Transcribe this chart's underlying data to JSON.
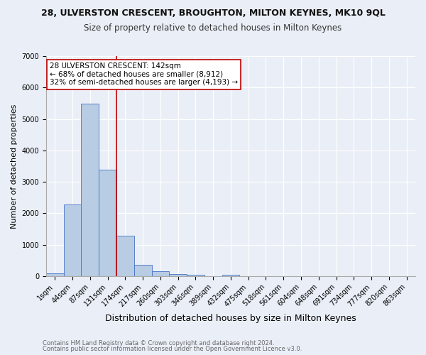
{
  "title1": "28, ULVERSTON CRESCENT, BROUGHTON, MILTON KEYNES, MK10 9QL",
  "title2": "Size of property relative to detached houses in Milton Keynes",
  "xlabel": "Distribution of detached houses by size in Milton Keynes",
  "ylabel": "Number of detached properties",
  "footer1": "Contains HM Land Registry data © Crown copyright and database right 2024.",
  "footer2": "Contains public sector information licensed under the Open Government Licence v3.0.",
  "bar_labels": [
    "1sqm",
    "44sqm",
    "87sqm",
    "131sqm",
    "174sqm",
    "217sqm",
    "260sqm",
    "303sqm",
    "346sqm",
    "389sqm",
    "432sqm",
    "475sqm",
    "518sqm",
    "561sqm",
    "604sqm",
    "648sqm",
    "691sqm",
    "734sqm",
    "777sqm",
    "820sqm",
    "863sqm"
  ],
  "bar_values": [
    80,
    2280,
    5480,
    3380,
    1290,
    360,
    155,
    65,
    55,
    0,
    55,
    0,
    0,
    0,
    0,
    0,
    0,
    0,
    0,
    0,
    0
  ],
  "bar_color": "#b8cce4",
  "bar_edge_color": "#4472c4",
  "vline_x": 3.5,
  "vline_color": "#c00000",
  "annotation_text": "28 ULVERSTON CRESCENT: 142sqm\n← 68% of detached houses are smaller (8,912)\n32% of semi-detached houses are larger (4,193) →",
  "annotation_box_color": "#ffffff",
  "annotation_box_edge_color": "#c00000",
  "ylim": [
    0,
    7000
  ],
  "yticks": [
    0,
    1000,
    2000,
    3000,
    4000,
    5000,
    6000,
    7000
  ],
  "bg_color": "#eaeff7",
  "plot_bg_color": "#eaeff7",
  "grid_color": "#ffffff",
  "title1_fontsize": 9,
  "title2_fontsize": 8.5,
  "xlabel_fontsize": 9,
  "ylabel_fontsize": 8,
  "annotation_fontsize": 7.5,
  "footer_fontsize": 6,
  "tick_fontsize": 7
}
